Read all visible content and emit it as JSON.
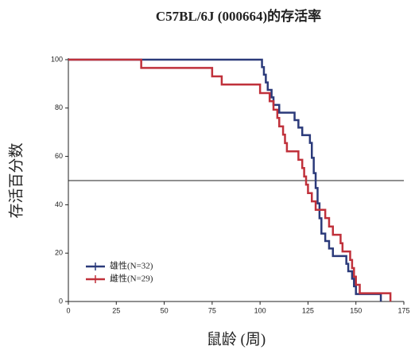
{
  "chart_data": {
    "type": "step",
    "title": "C57BL/6J (000664)的存活率",
    "x_label": "鼠龄 (周)",
    "y_label": "存活百分数",
    "xlim": [
      0,
      175
    ],
    "xticks": [
      0,
      25,
      50,
      75,
      100,
      125,
      150,
      175
    ],
    "ylim": [
      0,
      100
    ],
    "yticks": [
      0,
      20,
      40,
      60,
      80,
      100
    ],
    "hline": 50,
    "series": [
      {
        "name": "雄性(N=32)",
        "color": "#2b3a7a",
        "x": [
          0,
          101,
          102,
          103,
          104,
          106,
          107,
          110,
          118,
          120,
          122,
          126,
          127,
          128,
          129,
          130,
          131,
          132,
          134,
          136,
          138,
          145,
          146,
          148,
          149,
          150,
          163
        ],
        "values": [
          100,
          96.9,
          93.8,
          90.6,
          87.5,
          84.4,
          81.3,
          78.1,
          75,
          71.9,
          68.8,
          65.6,
          59.4,
          53.1,
          46.9,
          40.6,
          34.4,
          28.1,
          25,
          21.9,
          18.8,
          15.6,
          12.5,
          9.4,
          6.3,
          3.1,
          0
        ]
      },
      {
        "name": "雌性(N=29)",
        "color": "#c0313b",
        "x": [
          0,
          38,
          75,
          80,
          100,
          105,
          107,
          109,
          110,
          112,
          113,
          114,
          120,
          122,
          123,
          124,
          125,
          127,
          129,
          134,
          136,
          138,
          142,
          143,
          147,
          148,
          149,
          150,
          152,
          168
        ],
        "values": [
          100,
          96.6,
          93.1,
          89.7,
          86.2,
          82.8,
          79.3,
          75.9,
          72.4,
          69,
          65.5,
          62.1,
          58.6,
          55.2,
          51.7,
          48.3,
          44.8,
          41.4,
          37.9,
          34.5,
          31,
          27.6,
          24.1,
          20.7,
          17.2,
          13.8,
          10.3,
          6.9,
          3.4,
          0
        ]
      }
    ]
  }
}
